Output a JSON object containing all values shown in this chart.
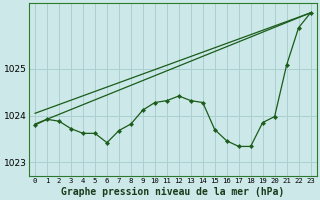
{
  "title": "Graphe pression niveau de la mer (hPa)",
  "background_color": "#cce8e8",
  "grid_color": "#aad0d0",
  "line_color": "#1a5c1a",
  "ylim": [
    1022.7,
    1026.4
  ],
  "yticks": [
    1023,
    1024,
    1025
  ],
  "xlim": [
    -0.5,
    23.5
  ],
  "x_labels": [
    "0",
    "1",
    "2",
    "3",
    "4",
    "5",
    "6",
    "7",
    "8",
    "9",
    "10",
    "11",
    "12",
    "13",
    "14",
    "15",
    "16",
    "17",
    "18",
    "19",
    "20",
    "21",
    "22",
    "23"
  ],
  "main_x": [
    0,
    1,
    2,
    3,
    4,
    5,
    6,
    7,
    8,
    9,
    10,
    11,
    12,
    13,
    14,
    15,
    16,
    17,
    18,
    19,
    20,
    21,
    22,
    23
  ],
  "main_y": [
    1023.8,
    1023.92,
    1023.88,
    1023.72,
    1023.62,
    1023.62,
    1023.42,
    1023.68,
    1023.82,
    1024.12,
    1024.28,
    1024.32,
    1024.42,
    1024.32,
    1024.28,
    1023.7,
    1023.46,
    1023.34,
    1023.34,
    1023.85,
    1023.98,
    1025.08,
    1025.88,
    1026.2
  ],
  "line1_x": [
    0,
    23
  ],
  "line1_y": [
    1023.82,
    1026.2
  ],
  "line2_x": [
    0,
    23
  ],
  "line2_y": [
    1024.05,
    1026.2
  ],
  "ylabel_fontsize": 6.5,
  "xlabel_fontsize": 7,
  "tick_fontsize": 5.2
}
